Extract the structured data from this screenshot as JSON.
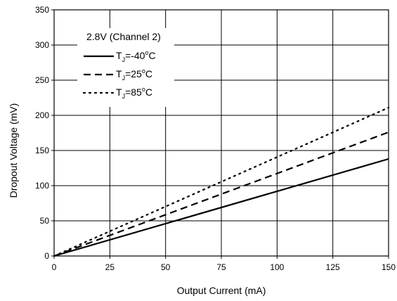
{
  "chart_data": {
    "type": "line",
    "xlabel": "Output Current (mA)",
    "ylabel": "Dropout Voltage (mV)",
    "xlim": [
      0,
      150
    ],
    "ylim": [
      0,
      350
    ],
    "xticks": [
      0,
      25,
      50,
      75,
      100,
      125,
      150
    ],
    "yticks": [
      0,
      50,
      100,
      150,
      200,
      250,
      300,
      350
    ],
    "grid": true,
    "legend_title": "2.8V (Channel 2)",
    "legend_position": "top-left",
    "series": [
      {
        "name": "T_J=-40°C",
        "name_parts": {
          "main": "T",
          "sub": "J",
          "value": "=-40",
          "sup": "o",
          "unit": "C"
        },
        "style": "solid",
        "x": [
          0,
          150
        ],
        "y": [
          0,
          138
        ]
      },
      {
        "name": "T_J=25°C",
        "name_parts": {
          "main": "T",
          "sub": "J",
          "value": "=25",
          "sup": "o",
          "unit": "C"
        },
        "style": "dashed",
        "x": [
          0,
          150
        ],
        "y": [
          0,
          176
        ]
      },
      {
        "name": "T_J=85°C",
        "name_parts": {
          "main": "T",
          "sub": "J",
          "value": "=85",
          "sup": "o",
          "unit": "C"
        },
        "style": "dotted",
        "x": [
          0,
          150
        ],
        "y": [
          0,
          211
        ]
      }
    ]
  }
}
